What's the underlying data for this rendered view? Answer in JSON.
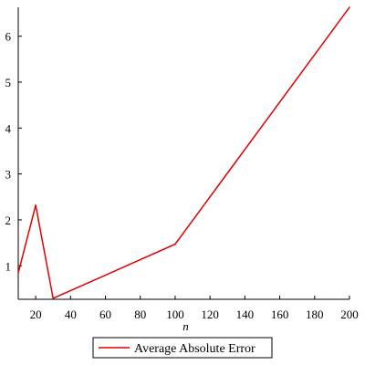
{
  "chart_data": {
    "type": "line",
    "title": "",
    "xlabel": "n",
    "ylabel": "",
    "xlim": [
      10,
      200
    ],
    "ylim": [
      0.27,
      6.63
    ],
    "xticks": [
      20,
      40,
      60,
      80,
      100,
      120,
      140,
      160,
      180,
      200
    ],
    "yticks": [
      1,
      2,
      3,
      4,
      5,
      6
    ],
    "grid": false,
    "legend_position": "bottom",
    "series": [
      {
        "name": "Average Absolute Error",
        "color": "#e00000",
        "x": [
          10,
          20,
          30,
          100,
          200
        ],
        "y": [
          0.84,
          2.32,
          0.29,
          1.47,
          6.63
        ]
      }
    ]
  }
}
